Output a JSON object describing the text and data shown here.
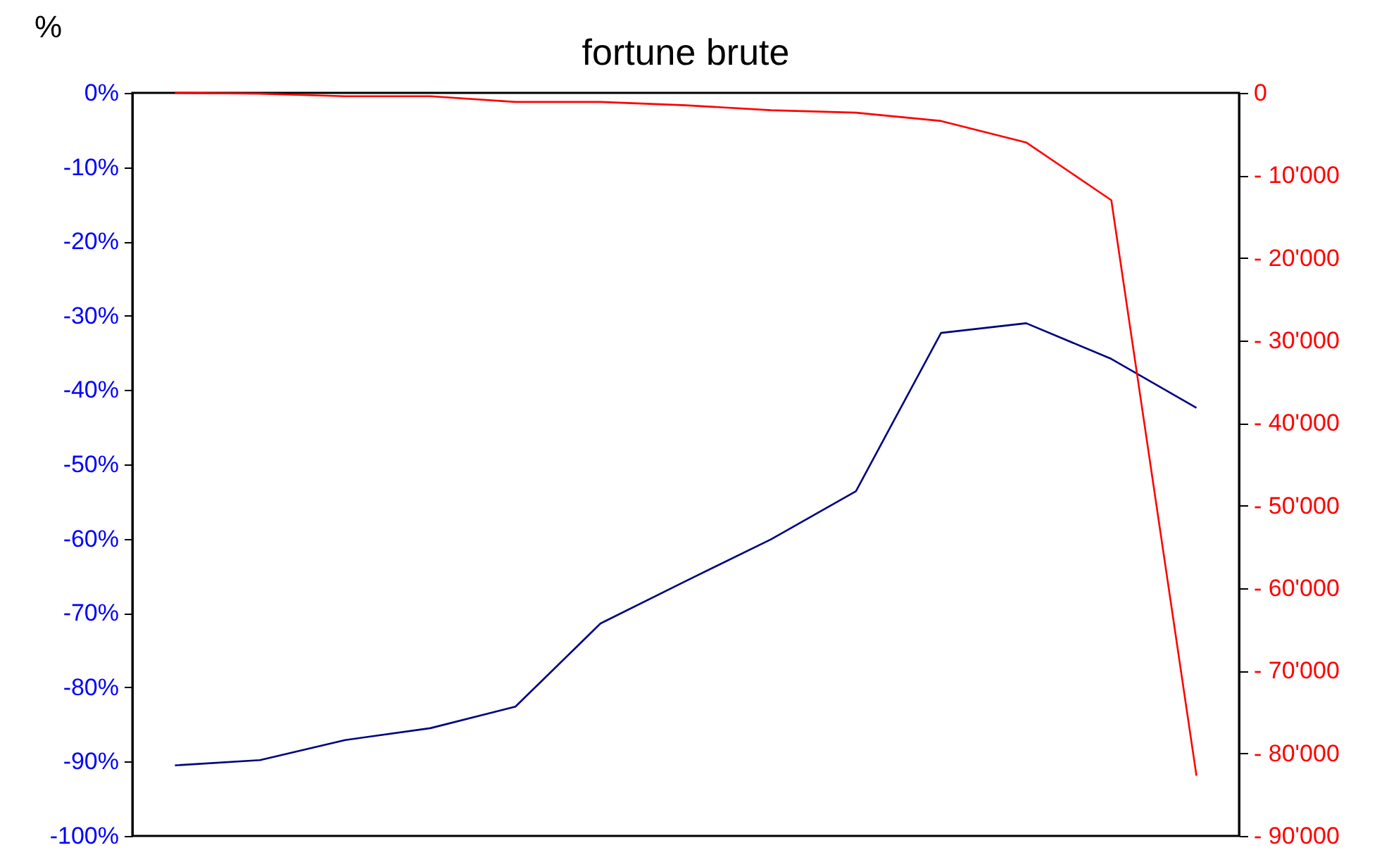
{
  "chart_data": {
    "type": "line",
    "title": "fortune brute",
    "ylabel": "%",
    "categories": [
      null,
      null,
      null,
      null,
      null,
      null,
      null,
      null,
      null,
      null,
      null,
      null,
      null
    ],
    "series": [
      {
        "color": "#000080",
        "values": [
          -90.5,
          -89.8,
          -87.1,
          -85.5,
          -82.6,
          -71.4,
          -65.7,
          -60.1,
          -53.6,
          -32.3,
          -31.0,
          -35.8,
          -42.4
        ]
      },
      {
        "color": "#ff0000",
        "axis": "y2",
        "values": [
          0,
          -100,
          -400,
          -400,
          -1100,
          -1100,
          -1500,
          -2100,
          -2400,
          -3400,
          -6000,
          -13000,
          -82700
        ]
      }
    ],
    "ylim": [
      -100,
      0
    ],
    "yticks": [
      {
        "value": 0,
        "label": "0%"
      },
      {
        "value": -10,
        "label": "-10%"
      },
      {
        "value": -20,
        "label": "-20%"
      },
      {
        "value": -30,
        "label": "-30%"
      },
      {
        "value": -40,
        "label": "-40%"
      },
      {
        "value": -50,
        "label": "-50%"
      },
      {
        "value": -60,
        "label": "-60%"
      },
      {
        "value": -70,
        "label": "-70%"
      },
      {
        "value": -80,
        "label": "-80%"
      },
      {
        "value": -90,
        "label": "-90%"
      },
      {
        "value": -100,
        "label": "-100%"
      }
    ],
    "y2lim": [
      -90000,
      0
    ],
    "y2ticks": [
      0,
      {
        "value": -10000,
        "label": "- 10'000"
      },
      {
        "value": -20000,
        "label": "- 20'000"
      },
      {
        "value": -30000,
        "label": "- 30'000"
      },
      {
        "value": -40000,
        "label": "- 40'000"
      },
      {
        "value": -50000,
        "label": "- 50'000"
      },
      {
        "value": -60000,
        "label": "- 60'000"
      },
      {
        "value": -70000,
        "label": "- 70'000"
      },
      {
        "value": -80000,
        "label": "- 80'000"
      },
      {
        "value": -90000,
        "label": "- 90'000"
      }
    ],
    "grid": false
  }
}
